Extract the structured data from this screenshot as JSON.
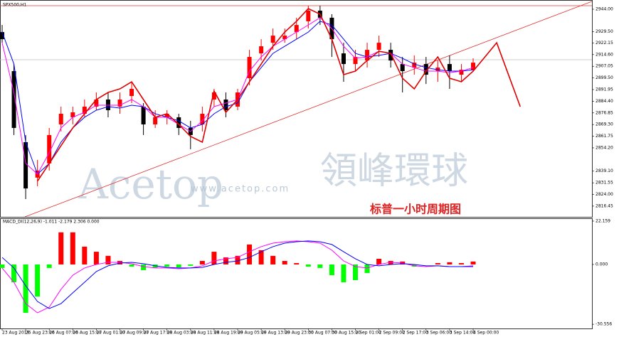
{
  "chart_data": [
    {
      "type": "candlestick",
      "title": "SPX500,H1",
      "categories": [
        "23 Aug 2019",
        null,
        "25 Aug 23:00",
        null,
        "26 Aug 07:00",
        null,
        "26 Aug 15:00",
        null,
        "27 Aug 01:00",
        null,
        "27 Aug 09:00",
        null,
        "27 Aug 17:00",
        null,
        "28 Aug 03:00",
        null,
        "28 Aug 11:00",
        null,
        "28 Aug 19:00",
        null,
        "29 Aug 05:00",
        null,
        "29 Aug 13:00",
        null,
        "29 Aug 23:00",
        null,
        "30 Aug 07:00",
        null,
        "30 Aug 15:00",
        null,
        "2 Sep 01:00",
        null,
        "2 Sep 09:00",
        null,
        "2 Sep 17:00",
        null,
        "3 Sep 06:00",
        null,
        "3 Sep 14:00",
        null,
        "4 Sep 00:00",
        null,
        null,
        null,
        null
      ],
      "open": [
        2929.2,
        2903.9,
        2857.9,
        2834.9,
        2844.1,
        2869.4,
        2874.0,
        2876.3,
        2880.9,
        2885.5,
        2880.9,
        2887.8,
        2880.9,
        2869.4,
        2874.0,
        2874.0,
        2867.1,
        2869.4,
        2885.5,
        2885.5,
        2880.9,
        2899.3,
        2915.4,
        2922.3,
        2924.6,
        2929.2,
        2936.2,
        2943.1,
        2938.5,
        2915.4,
        2908.5,
        2910.8,
        2917.7,
        2917.7,
        2908.5,
        2906.2,
        2908.5,
        2903.9,
        2908.5,
        2901.6,
        2904.8,
        null,
        null,
        null,
        null
      ],
      "high": [
        2933.8,
        2908.5,
        2862.5,
        2846.4,
        2867.1,
        2880.9,
        2880.9,
        2885.5,
        2890.1,
        2890.1,
        2890.1,
        2897.0,
        2883.2,
        2878.6,
        2878.6,
        2876.3,
        2871.7,
        2880.9,
        2892.4,
        2890.1,
        2892.4,
        2917.7,
        2924.6,
        2931.5,
        2931.5,
        2938.5,
        2946.3,
        2946.3,
        2940.8,
        2922.3,
        2917.7,
        2922.3,
        2926.9,
        2922.3,
        2913.1,
        2914.1,
        2913.1,
        2910.8,
        2914.1,
        2908.5,
        2912.2,
        null,
        null,
        null,
        null
      ],
      "low": [
        2922.3,
        2862.5,
        2821.0,
        2829.3,
        2839.5,
        2864.8,
        2869.4,
        2874.0,
        2878.6,
        2874.0,
        2876.3,
        2883.2,
        2862.5,
        2867.1,
        2869.4,
        2862.5,
        2853.3,
        2864.8,
        2880.9,
        2874.0,
        2878.6,
        2894.7,
        2910.8,
        2917.7,
        2922.3,
        2924.6,
        2931.5,
        2933.8,
        2913.1,
        2897.0,
        2903.9,
        2906.2,
        2913.1,
        2906.2,
        2890.1,
        2901.6,
        2895.6,
        2897.0,
        2892.4,
        2897.0,
        2903.9,
        null,
        null,
        null,
        null
      ],
      "close": [
        2924.6,
        2867.1,
        2827.9,
        2839.5,
        2862.5,
        2876.3,
        2877.2,
        2880.9,
        2885.5,
        2878.6,
        2885.5,
        2892.4,
        2869.4,
        2874.0,
        2876.3,
        2867.1,
        2862.5,
        2876.3,
        2890.1,
        2878.6,
        2890.1,
        2913.1,
        2920.0,
        2926.9,
        2926.9,
        2933.8,
        2943.1,
        2938.5,
        2924.6,
        2908.5,
        2913.1,
        2917.7,
        2922.3,
        2910.8,
        2903.9,
        2909.4,
        2901.6,
        2906.2,
        2903.9,
        2904.8,
        2909.4,
        null,
        null,
        null,
        null
      ],
      "up_color": "#ff0000",
      "down_color": "#000000",
      "lines": [
        {
          "color": "#0000ff",
          "values": [
            2929.2,
            2908.5,
            2857.9,
            2837.2,
            2844.1,
            2857.9,
            2867.1,
            2874.0,
            2878.6,
            2880.9,
            2880.0,
            2881.8,
            2880.9,
            2876.3,
            2874.0,
            2871.7,
            2867.1,
            2869.4,
            2876.3,
            2880.9,
            2883.2,
            2897.0,
            2906.2,
            2915.4,
            2920.0,
            2924.6,
            2929.2,
            2936.2,
            2933.8,
            2924.6,
            2915.4,
            2913.1,
            2914.1,
            2915.4,
            2912.2,
            2908.5,
            2906.2,
            2904.8,
            2903.9,
            2903.9,
            2904.8,
            null,
            null,
            null,
            null
          ]
        },
        {
          "color": "#ff00ff",
          "values": [
            2922.3,
            2890.1,
            2844.1,
            2837.2,
            2851.0,
            2867.1,
            2874.0,
            2877.2,
            2881.8,
            2881.8,
            2881.8,
            2885.5,
            2880.9,
            2874.0,
            2874.0,
            2869.4,
            2864.8,
            2871.7,
            2880.9,
            2883.2,
            2885.5,
            2903.9,
            2913.1,
            2920.0,
            2924.6,
            2929.2,
            2933.8,
            2938.5,
            2931.5,
            2920.0,
            2912.2,
            2913.1,
            2916.8,
            2915.4,
            2908.5,
            2906.2,
            2903.9,
            2903.9,
            2902.9,
            2903.9,
            2906.2,
            null,
            null,
            null,
            null
          ]
        },
        {
          "color": "#e00000",
          "values": [
            null,
            null,
            null,
            2832.6,
            2844.1,
            2855.6,
            2867.1,
            2876.3,
            2885.5,
            2890.1,
            2892.4,
            2897.0,
            2885.5,
            2874.0,
            2876.3,
            2869.4,
            2861.6,
            2857.9,
            2891.0,
            2877.2,
            2885.5,
            2897.0,
            2908.5,
            2920.0,
            2929.2,
            2936.2,
            2944.4,
            2940.8,
            2924.6,
            2901.6,
            2903.9,
            2910.8,
            2916.8,
            2915.4,
            2899.3,
            2892.4,
            2903.9,
            2913.1,
            2899.3,
            2897.0,
            2903.9,
            2913.1,
            2922.3,
            2901.6,
            2880.9
          ]
        }
      ],
      "ylim": [
        2809.5,
        2948.6
      ],
      "yticks": [
        {
          "value": 2944,
          "label": "2944.00"
        },
        {
          "value": 2929.5,
          "label": "2929.50"
        },
        2922.15,
        {
          "value": 2914.6,
          "label": "2914.60"
        },
        2907.05,
        {
          "value": 2899.5,
          "label": "2899.50"
        },
        2891.95,
        {
          "value": 2884.4,
          "label": "2884.40"
        },
        2876.85,
        {
          "value": 2869.3,
          "label": "2869.30"
        },
        2861.75,
        {
          "value": 2854.2,
          "label": "2854.20"
        },
        {
          "value": 2839.1,
          "label": "2839.10"
        },
        2831.55,
        {
          "value": 2824,
          "label": "2824.00"
        },
        2816.45
      ],
      "annotation": "标普一小时周期图",
      "watermark": {
        "brand": "Acetop",
        "name": "領峰環球",
        "url": "www.acetop.com"
      }
    },
    {
      "type": "bar",
      "title": "MACD_DI(12,26,9) -1.011 -2.179 2.306 0.000",
      "values": [
        -1.8,
        -9.1,
        -24.7,
        -16.4,
        -1.8,
        16.4,
        16.4,
        9.1,
        6.5,
        4.4,
        1.8,
        -1.1,
        -2.9,
        -1.8,
        -1.1,
        -1.5,
        -0.7,
        1.8,
        6.5,
        3.6,
        4.4,
        10.2,
        7.3,
        4.4,
        1.8,
        0.7,
        -1.1,
        -1.8,
        -5.5,
        -9.1,
        -8.0,
        -4.4,
        2.9,
        1.8,
        1.5,
        -1.1,
        0,
        0.7,
        1.1,
        0.7,
        1.5,
        null,
        null,
        null,
        null
      ],
      "up_color": "#ff0000",
      "down_color": "#00ff00",
      "lines": [
        {
          "color": "#ff00ff",
          "values": [
            -1.8,
            -9.1,
            -20.0,
            -24.7,
            -21.8,
            -12.7,
            -5.5,
            -1.8,
            0,
            1.1,
            1.1,
            0.4,
            -1.1,
            -1.8,
            -1.8,
            -2.2,
            -1.8,
            -0.7,
            1.8,
            2.9,
            3.6,
            6.5,
            9.1,
            10.9,
            11.6,
            12.0,
            11.6,
            10.9,
            7.3,
            1.8,
            -1.1,
            -1.8,
            0,
            1.1,
            0.7,
            -0.7,
            -1.1,
            -0.7,
            -1.1,
            -1.1,
            -0.7,
            null,
            null,
            null,
            null
          ]
        },
        {
          "color": "#0000ff",
          "values": [
            3.6,
            -1.8,
            -10.9,
            -18.9,
            -22.5,
            -20.0,
            -14.5,
            -9.1,
            -3.6,
            -0.7,
            0.7,
            1.1,
            0.4,
            -0.7,
            -1.5,
            -1.8,
            -1.8,
            -1.5,
            0,
            1.1,
            1.8,
            3.6,
            6.5,
            9.1,
            10.9,
            11.6,
            12.0,
            11.6,
            10.2,
            6.5,
            2.9,
            0,
            -0.7,
            0,
            0.4,
            0,
            -0.7,
            -0.7,
            -1.1,
            -1.1,
            -1.1,
            null,
            null,
            null,
            null
          ]
        }
      ],
      "ylim": [
        -32.7,
        23.6
      ],
      "yticks": [
        22.159,
        {
          "value": 0,
          "label": "0.000"
        },
        -30.556
      ]
    }
  ]
}
